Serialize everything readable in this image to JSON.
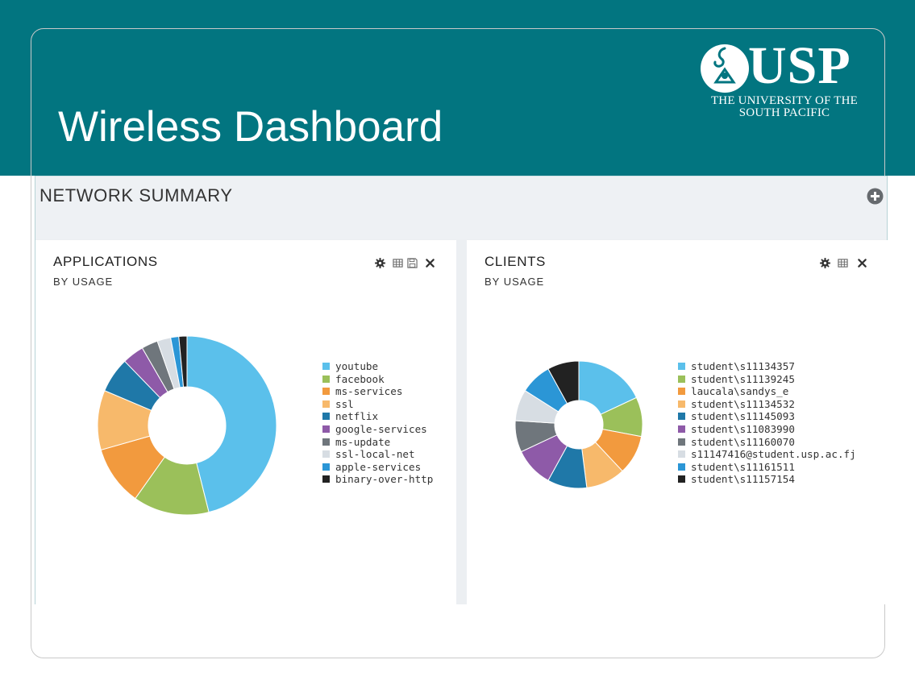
{
  "slide": {
    "title": "Wireless Dashboard",
    "logo": {
      "wordmark": "USP",
      "subtitle_line1": "THE UNIVERSITY OF THE",
      "subtitle_line2": "SOUTH PACIFIC"
    }
  },
  "dashboard": {
    "section_title": "NETWORK SUMMARY",
    "add_icon": "plus-circle-icon"
  },
  "panels": {
    "applications": {
      "title": "APPLICATIONS",
      "subtitle": "BY USAGE",
      "tools": [
        "gear-icon",
        "table-icon",
        "save-icon",
        "close-icon"
      ]
    },
    "clients": {
      "title": "CLIENTS",
      "subtitle": "BY USAGE",
      "tools": [
        "gear-icon",
        "table-icon",
        "close-icon"
      ]
    }
  },
  "chart_data": [
    {
      "type": "pie",
      "style": "donut",
      "title": "APPLICATIONS",
      "subtitle": "BY USAGE",
      "legend_position": "right",
      "slices": [
        {
          "label": "youtube",
          "value": 47,
          "color": "#5bc0eb"
        },
        {
          "label": "facebook",
          "value": 14,
          "color": "#9bc05a"
        },
        {
          "label": "ms-services",
          "value": 11,
          "color": "#f29a3e"
        },
        {
          "label": "ssl",
          "value": 11,
          "color": "#f7b96b"
        },
        {
          "label": "netflix",
          "value": 6.5,
          "color": "#1f78a8"
        },
        {
          "label": "google-services",
          "value": 4,
          "color": "#8e5aa8"
        },
        {
          "label": "ms-update",
          "value": 3,
          "color": "#6f767c"
        },
        {
          "label": "ssl-local-net",
          "value": 2.5,
          "color": "#d7dde3"
        },
        {
          "label": "apple-services",
          "value": 1.5,
          "color": "#2b96d6"
        },
        {
          "label": "binary-over-http",
          "value": 1.5,
          "color": "#222222"
        }
      ]
    },
    {
      "type": "pie",
      "style": "donut",
      "title": "CLIENTS",
      "subtitle": "BY USAGE",
      "legend_position": "right",
      "slices": [
        {
          "label": "student\\s11134357",
          "value": 18,
          "color": "#5bc0eb"
        },
        {
          "label": "student\\s11139245",
          "value": 10,
          "color": "#9bc05a"
        },
        {
          "label": "laucala\\sandys_e",
          "value": 10,
          "color": "#f29a3e"
        },
        {
          "label": "student\\s11134532",
          "value": 10,
          "color": "#f7b96b"
        },
        {
          "label": "student\\s11145093",
          "value": 10,
          "color": "#1f78a8"
        },
        {
          "label": "student\\s11083990",
          "value": 10,
          "color": "#8e5aa8"
        },
        {
          "label": "student\\s11160070",
          "value": 8,
          "color": "#6f767c"
        },
        {
          "label": "s11147416@student.usp.ac.fj",
          "value": 8,
          "color": "#d7dde3"
        },
        {
          "label": "student\\s11161511",
          "value": 8,
          "color": "#2b96d6"
        },
        {
          "label": "student\\s11157154",
          "value": 8,
          "color": "#222222"
        }
      ]
    }
  ]
}
